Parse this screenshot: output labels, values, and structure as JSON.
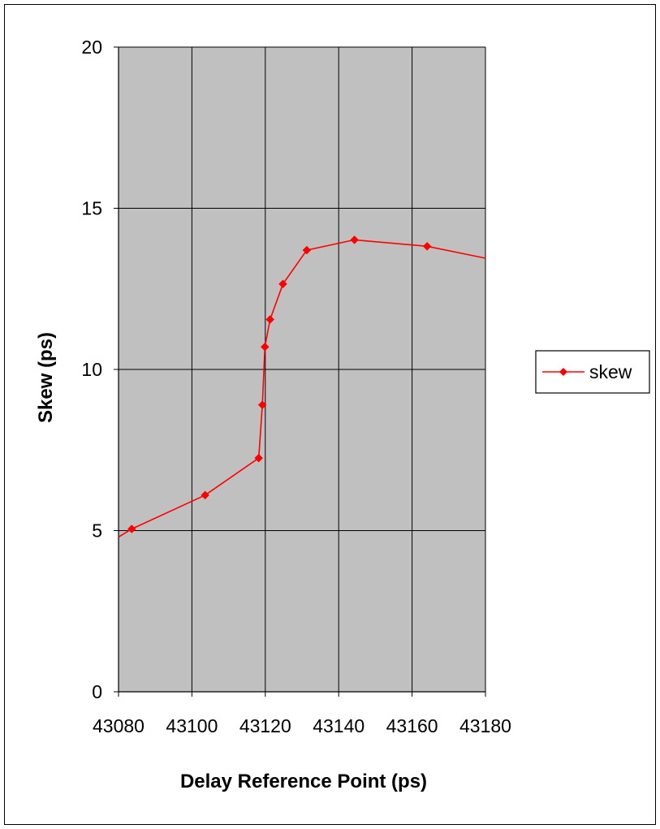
{
  "chart_data": {
    "type": "line",
    "xlabel": "Delay Reference Point (ps)",
    "ylabel": "Skew (ps)",
    "xlim": [
      43080,
      43180
    ],
    "ylim": [
      0,
      20
    ],
    "x_ticks": [
      43080,
      43100,
      43120,
      43140,
      43160,
      43180
    ],
    "y_ticks": [
      0,
      5,
      10,
      15,
      20
    ],
    "grid": true,
    "legend_position": "right",
    "plot_background": "#c0c0c0",
    "series": [
      {
        "name": "skew",
        "color": "#ff0000",
        "marker": "diamond",
        "clipped_ends": true,
        "points": [
          {
            "x": 43080,
            "y": 4.8
          },
          {
            "x": 43083.6,
            "y": 5.05
          },
          {
            "x": 43103.6,
            "y": 6.1
          },
          {
            "x": 43118.2,
            "y": 7.25
          },
          {
            "x": 43119.2,
            "y": 8.9
          },
          {
            "x": 43119.9,
            "y": 10.7
          },
          {
            "x": 43121.3,
            "y": 11.55
          },
          {
            "x": 43124.8,
            "y": 12.65
          },
          {
            "x": 43131.3,
            "y": 13.7
          },
          {
            "x": 43144.3,
            "y": 14.02
          },
          {
            "x": 43164.1,
            "y": 13.82
          },
          {
            "x": 43180,
            "y": 13.45
          }
        ]
      }
    ]
  }
}
